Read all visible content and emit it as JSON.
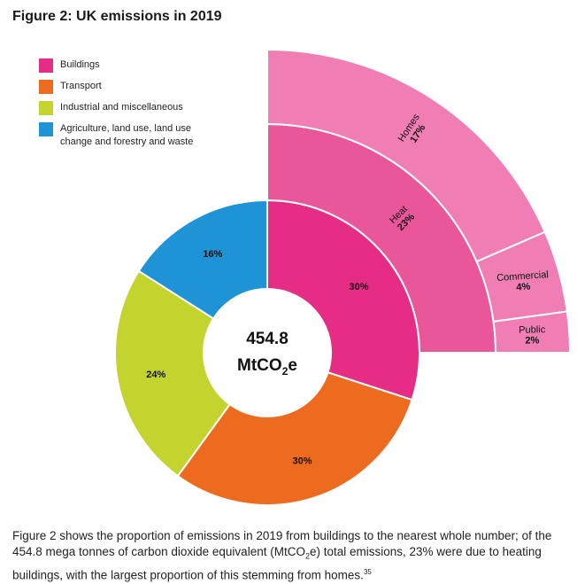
{
  "figure": {
    "title": "Figure 2: UK emissions in 2019"
  },
  "legend": [
    {
      "label": "Buildings",
      "color": "#e62d85"
    },
    {
      "label": "Transport",
      "color": "#ec6b1f"
    },
    {
      "label": "Industrial and miscellaneous",
      "color": "#c4d42f"
    },
    {
      "label": "Agriculture, land use, land use change and forestry and waste",
      "color": "#1e93d6"
    }
  ],
  "chart_data": {
    "type": "pie",
    "subtype": "sunburst-donut",
    "center_label": {
      "value": "454.8",
      "unit_main": "MtCO",
      "unit_sub": "2",
      "unit_tail": "e"
    },
    "total_MtCO2e": 454.8,
    "inner_ring": [
      {
        "name": "Buildings",
        "value": 30,
        "label": "30%",
        "color": "#e62d85"
      },
      {
        "name": "Transport",
        "value": 30,
        "label": "30%",
        "color": "#ec6b1f"
      },
      {
        "name": "Industrial and miscellaneous",
        "value": 24,
        "label": "24%",
        "color": "#c4d42f"
      },
      {
        "name": "Agriculture, land use, land use change and forestry and waste",
        "value": 16,
        "label": "16%",
        "color": "#1e93d6"
      }
    ],
    "buildings_breakdown": {
      "heat": {
        "name": "Heat",
        "value": 23,
        "label": "23%",
        "color": "#e9579a"
      },
      "heat_detail": [
        {
          "name": "Homes",
          "value": 17,
          "label": "17%",
          "color": "#f07db4"
        },
        {
          "name": "Commercial",
          "value": 4,
          "label": "4%",
          "color": "#f07db4"
        },
        {
          "name": "Public",
          "value": 2,
          "label": "2%",
          "color": "#f07db4"
        }
      ]
    },
    "legend_position": "top-left"
  },
  "caption": {
    "part1": "Figure 2 shows the proportion of emissions in 2019 from buildings to the nearest whole number; of the 454.8 mega tonnes of carbon dioxide equivalent (MtCO",
    "sub": "2",
    "part2": "e) total emissions, 23% were due to heating buildings, with the largest proportion of this stemming from homes.",
    "ref": "35"
  }
}
